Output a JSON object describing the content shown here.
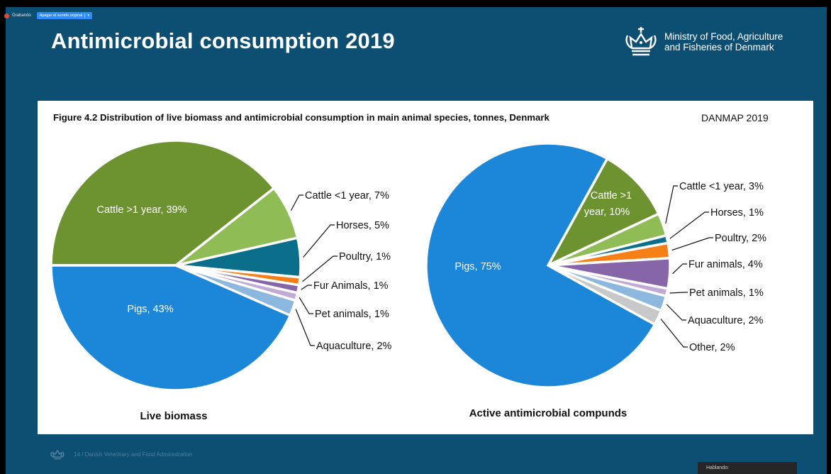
{
  "recording": {
    "status_label": "Grabando",
    "mute_button_label": "Apagar el sonido original",
    "caret": "▾"
  },
  "slide": {
    "title": "Antimicrobial consumption 2019",
    "ministry_line1": "Ministry of Food, Agriculture",
    "ministry_line2": "and Fisheries of Denmark",
    "footer_text": "14 / Danish Veterinary and Food Administration"
  },
  "figure": {
    "title": "Figure 4.2 Distribution of live biomass and antimicrobial consumption in main animal species, tonnes, Denmark",
    "source": "DANMAP 2019"
  },
  "speaking_panel": {
    "label": "Hablando:"
  },
  "colors": {
    "slide_bg": "#0d4f72",
    "recording_dot": "#e04a3a",
    "mute_button": "#2d8cff"
  },
  "chart_data": [
    {
      "type": "pie",
      "title": "Live biomass",
      "categories": [
        "Cattle >1 year",
        "Cattle <1 year",
        "Horses",
        "Poultry",
        "Fur Animals",
        "Pet animals",
        "Aquaculture",
        "Pigs"
      ],
      "values": [
        39,
        7,
        5,
        1,
        1,
        1,
        2,
        43
      ],
      "labels": [
        "Cattle >1 year, 39%",
        "Cattle <1 year, 7%",
        "Horses, 5%",
        "Poultry, 1%",
        "Fur Animals, 1%",
        "Pet animals, 1%",
        "Aquaculture, 2%",
        "Pigs, 43%"
      ],
      "colors": [
        "#6d9330",
        "#8fbc55",
        "#0b6f8c",
        "#f77f17",
        "#8665a8",
        "#c2a9d6",
        "#8cb8e0",
        "#1c86d8"
      ]
    },
    {
      "type": "pie",
      "title": "Active antimicrobial compunds",
      "categories": [
        "Cattle >1 year",
        "Cattle <1 year",
        "Horses",
        "Poultry",
        "Fur animals",
        "Pet animals",
        "Aquaculture",
        "Other",
        "Pigs"
      ],
      "values": [
        10,
        3,
        1,
        2,
        4,
        1,
        2,
        2,
        75
      ],
      "labels": [
        "Cattle >1 year, 10%",
        "Cattle <1 year, 3%",
        "Horses, 1%",
        "Poultry, 2%",
        "Fur animals, 4%",
        "Pet animals, 1%",
        "Aquaculture, 2%",
        "Other, 2%",
        "Pigs, 75%"
      ],
      "colors": [
        "#6d9330",
        "#8fbc55",
        "#0b6f8c",
        "#f77f17",
        "#8665a8",
        "#c2a9d6",
        "#8cb8e0",
        "#c8c8c8",
        "#1c86d8"
      ]
    }
  ]
}
